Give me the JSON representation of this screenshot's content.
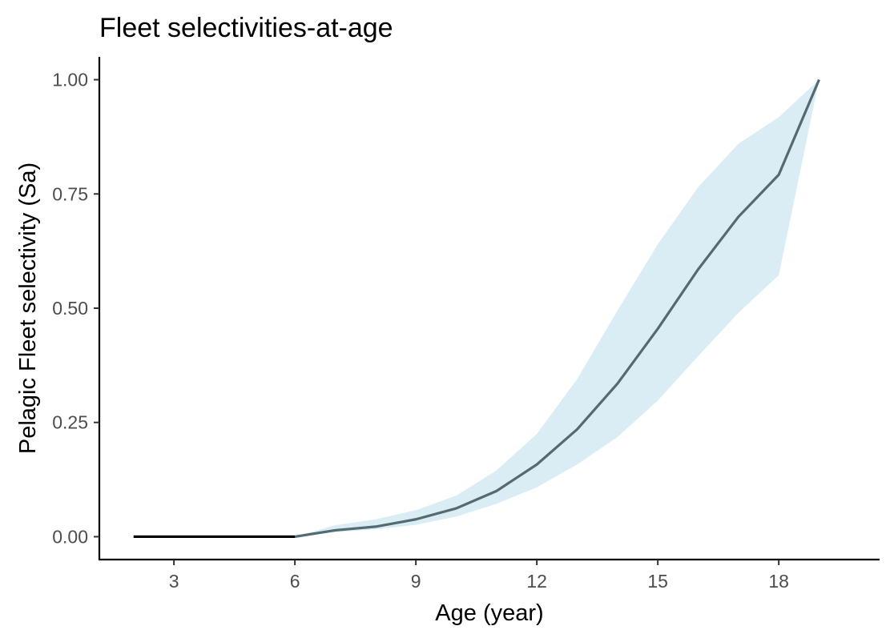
{
  "chart_data": {
    "type": "line",
    "title": "Fleet selectivities-at-age",
    "xlabel": "Age (year)",
    "ylabel": "Pelagic Fleet selectivity (Sa)",
    "xlim": [
      1.15,
      20.5
    ],
    "ylim": [
      -0.05,
      1.05
    ],
    "xticks": [
      3,
      6,
      9,
      12,
      15,
      18
    ],
    "xtick_labels": [
      "3",
      "6",
      "9",
      "12",
      "15",
      "18"
    ],
    "yticks": [
      0,
      0.25,
      0.5,
      0.75,
      1.0
    ],
    "ytick_labels": [
      "0.00",
      "0.25",
      "0.50",
      "0.75",
      "1.00"
    ],
    "grid": false,
    "series": [
      {
        "x": [
          2,
          3,
          4,
          5,
          6,
          7,
          8,
          9,
          10,
          11,
          12,
          13,
          14,
          15,
          16,
          17,
          18,
          19
        ],
        "values": [
          0.0,
          0.0,
          0.0,
          0.0,
          0.0,
          0.014,
          0.022,
          0.038,
          0.062,
          0.1,
          0.158,
          0.235,
          0.335,
          0.455,
          0.585,
          0.7,
          0.792,
          1.0
        ],
        "lower": [
          0.0,
          0.0,
          0.0,
          0.0,
          0.0,
          0.01,
          0.016,
          0.026,
          0.044,
          0.072,
          0.108,
          0.158,
          0.218,
          0.298,
          0.395,
          0.49,
          0.572,
          1.0
        ],
        "upper": [
          0.0,
          0.0,
          0.0,
          0.0,
          0.0,
          0.025,
          0.038,
          0.058,
          0.09,
          0.145,
          0.225,
          0.345,
          0.495,
          0.64,
          0.765,
          0.86,
          0.918,
          1.0
        ],
        "color": "#546a73",
        "band_color": "#add8e6"
      }
    ]
  }
}
